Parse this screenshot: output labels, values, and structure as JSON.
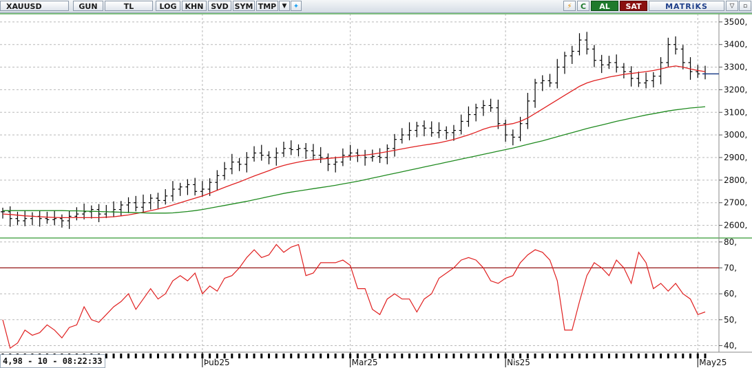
{
  "toolbar": {
    "symbol": "XAUUSD",
    "buttons": [
      "GUN",
      "TL",
      "LOG",
      "KHN",
      "SVD",
      "SYM",
      "TMP"
    ],
    "al_label": "AL",
    "sat_label": "SAT",
    "c_label": "C",
    "brand": "MATRiKS"
  },
  "footer": {
    "time_label": "4,98 - 10 - 08:22:33"
  },
  "colors": {
    "ohlc": "#000000",
    "ma_fast": "#e02020",
    "ma_slow": "#1f8a1f",
    "rsi": "#e02020",
    "rsi_level": "#8b0000",
    "divider": "#7fbf7f",
    "grid": "#b8b8b8"
  },
  "chart_data": [
    {
      "type": "ohlc",
      "ylim": [
        2550,
        3530
      ],
      "yticks": [
        2600,
        2700,
        2800,
        2900,
        3000,
        3100,
        3200,
        3300,
        3400,
        3500
      ],
      "ytick_labels": [
        "2600,",
        "2700,",
        "2800,",
        "2900,",
        "3000,",
        "3100,",
        "3200,",
        "3300,",
        "3400,",
        "3500,"
      ],
      "xlabels": [
        "Þub25",
        "Mar25",
        "Nis25",
        "May25"
      ],
      "xlabel_index": [
        27,
        47,
        68,
        94
      ],
      "closes": [
        2660,
        2630,
        2620,
        2630,
        2640,
        2630,
        2625,
        2630,
        2620,
        2640,
        2650,
        2660,
        2670,
        2650,
        2660,
        2670,
        2690,
        2700,
        2680,
        2700,
        2720,
        2710,
        2730,
        2760,
        2770,
        2780,
        2750,
        2760,
        2790,
        2820,
        2850,
        2880,
        2870,
        2900,
        2920,
        2910,
        2900,
        2920,
        2940,
        2935,
        2940,
        2930,
        2910,
        2900,
        2870,
        2880,
        2910,
        2920,
        2910,
        2900,
        2905,
        2900,
        2940,
        2980,
        3000,
        3020,
        3040,
        3030,
        3010,
        3020,
        3010,
        3020,
        3060,
        3090,
        3120,
        3130,
        3120,
        3050,
        3000,
        2990,
        3050,
        3150,
        3230,
        3240,
        3230,
        3300,
        3350,
        3370,
        3420,
        3380,
        3330,
        3310,
        3320,
        3300,
        3280,
        3250,
        3230,
        3240,
        3260,
        3320,
        3400,
        3380,
        3320,
        3280,
        3270,
        3270
      ],
      "series": [
        {
          "name": "",
          "values": [
            2650,
            2648,
            2645,
            2642,
            2640,
            2638,
            2636,
            2635,
            2634,
            2634,
            2634,
            2634,
            2634,
            2634,
            2636,
            2638,
            2642,
            2646,
            2652,
            2658,
            2665,
            2672,
            2680,
            2690,
            2700,
            2710,
            2720,
            2730,
            2742,
            2755,
            2768,
            2780,
            2792,
            2805,
            2818,
            2830,
            2842,
            2855,
            2865,
            2873,
            2880,
            2886,
            2890,
            2893,
            2896,
            2899,
            2902,
            2905,
            2908,
            2911,
            2915,
            2920,
            2926,
            2932,
            2938,
            2944,
            2950,
            2955,
            2960,
            2965,
            2972,
            2980,
            2990,
            3000,
            3012,
            3025,
            3035,
            3040,
            3045,
            3050,
            3060,
            3075,
            3095,
            3115,
            3135,
            3155,
            3175,
            3195,
            3215,
            3230,
            3240,
            3248,
            3256,
            3262,
            3268,
            3272,
            3276,
            3280,
            3285,
            3292,
            3300,
            3305,
            3300,
            3292,
            3285,
            3280
          ]
        },
        {
          "name": "",
          "values": [
            2665,
            2665,
            2665,
            2665,
            2665,
            2665,
            2665,
            2665,
            2665,
            2664,
            2664,
            2663,
            2662,
            2661,
            2660,
            2659,
            2658,
            2657,
            2656,
            2655,
            2654,
            2654,
            2654,
            2655,
            2658,
            2661,
            2665,
            2670,
            2676,
            2682,
            2688,
            2694,
            2700,
            2706,
            2713,
            2720,
            2727,
            2734,
            2741,
            2747,
            2752,
            2757,
            2762,
            2767,
            2772,
            2777,
            2783,
            2789,
            2795,
            2802,
            2809,
            2816,
            2823,
            2830,
            2837,
            2844,
            2851,
            2858,
            2865,
            2872,
            2879,
            2886,
            2893,
            2900,
            2907,
            2914,
            2921,
            2928,
            2935,
            2942,
            2950,
            2958,
            2966,
            2974,
            2983,
            2992,
            3001,
            3010,
            3019,
            3028,
            3036,
            3044,
            3052,
            3060,
            3067,
            3074,
            3081,
            3088,
            3094,
            3100,
            3106,
            3111,
            3115,
            3119,
            3122,
            3125
          ]
        }
      ]
    },
    {
      "type": "line",
      "ylim": [
        38,
        81
      ],
      "yticks": [
        40,
        50,
        60,
        70,
        80
      ],
      "ytick_labels": [
        "40,",
        "50,",
        "60,",
        "70,",
        "80,"
      ],
      "reference_level": 70,
      "series": [
        {
          "name": "",
          "values": [
            50,
            39,
            41,
            46,
            44,
            45,
            48,
            46,
            43,
            47,
            48,
            55,
            50,
            49,
            52,
            55,
            57,
            60,
            54,
            58,
            62,
            58,
            60,
            65,
            67,
            65,
            68,
            60,
            63,
            61,
            66,
            67,
            70,
            74,
            77,
            74,
            75,
            79,
            76,
            78,
            79,
            67,
            68,
            72,
            72,
            72,
            73,
            71,
            62,
            62,
            54,
            52,
            58,
            60,
            58,
            58,
            53,
            58,
            60,
            66,
            68,
            70,
            73,
            74,
            73,
            70,
            65,
            64,
            66,
            67,
            72,
            75,
            77,
            76,
            73,
            65,
            46,
            46,
            57,
            67,
            72,
            70,
            67,
            73,
            70,
            64,
            76,
            72,
            62,
            64,
            61,
            64,
            60,
            58,
            52,
            53
          ]
        }
      ]
    }
  ]
}
